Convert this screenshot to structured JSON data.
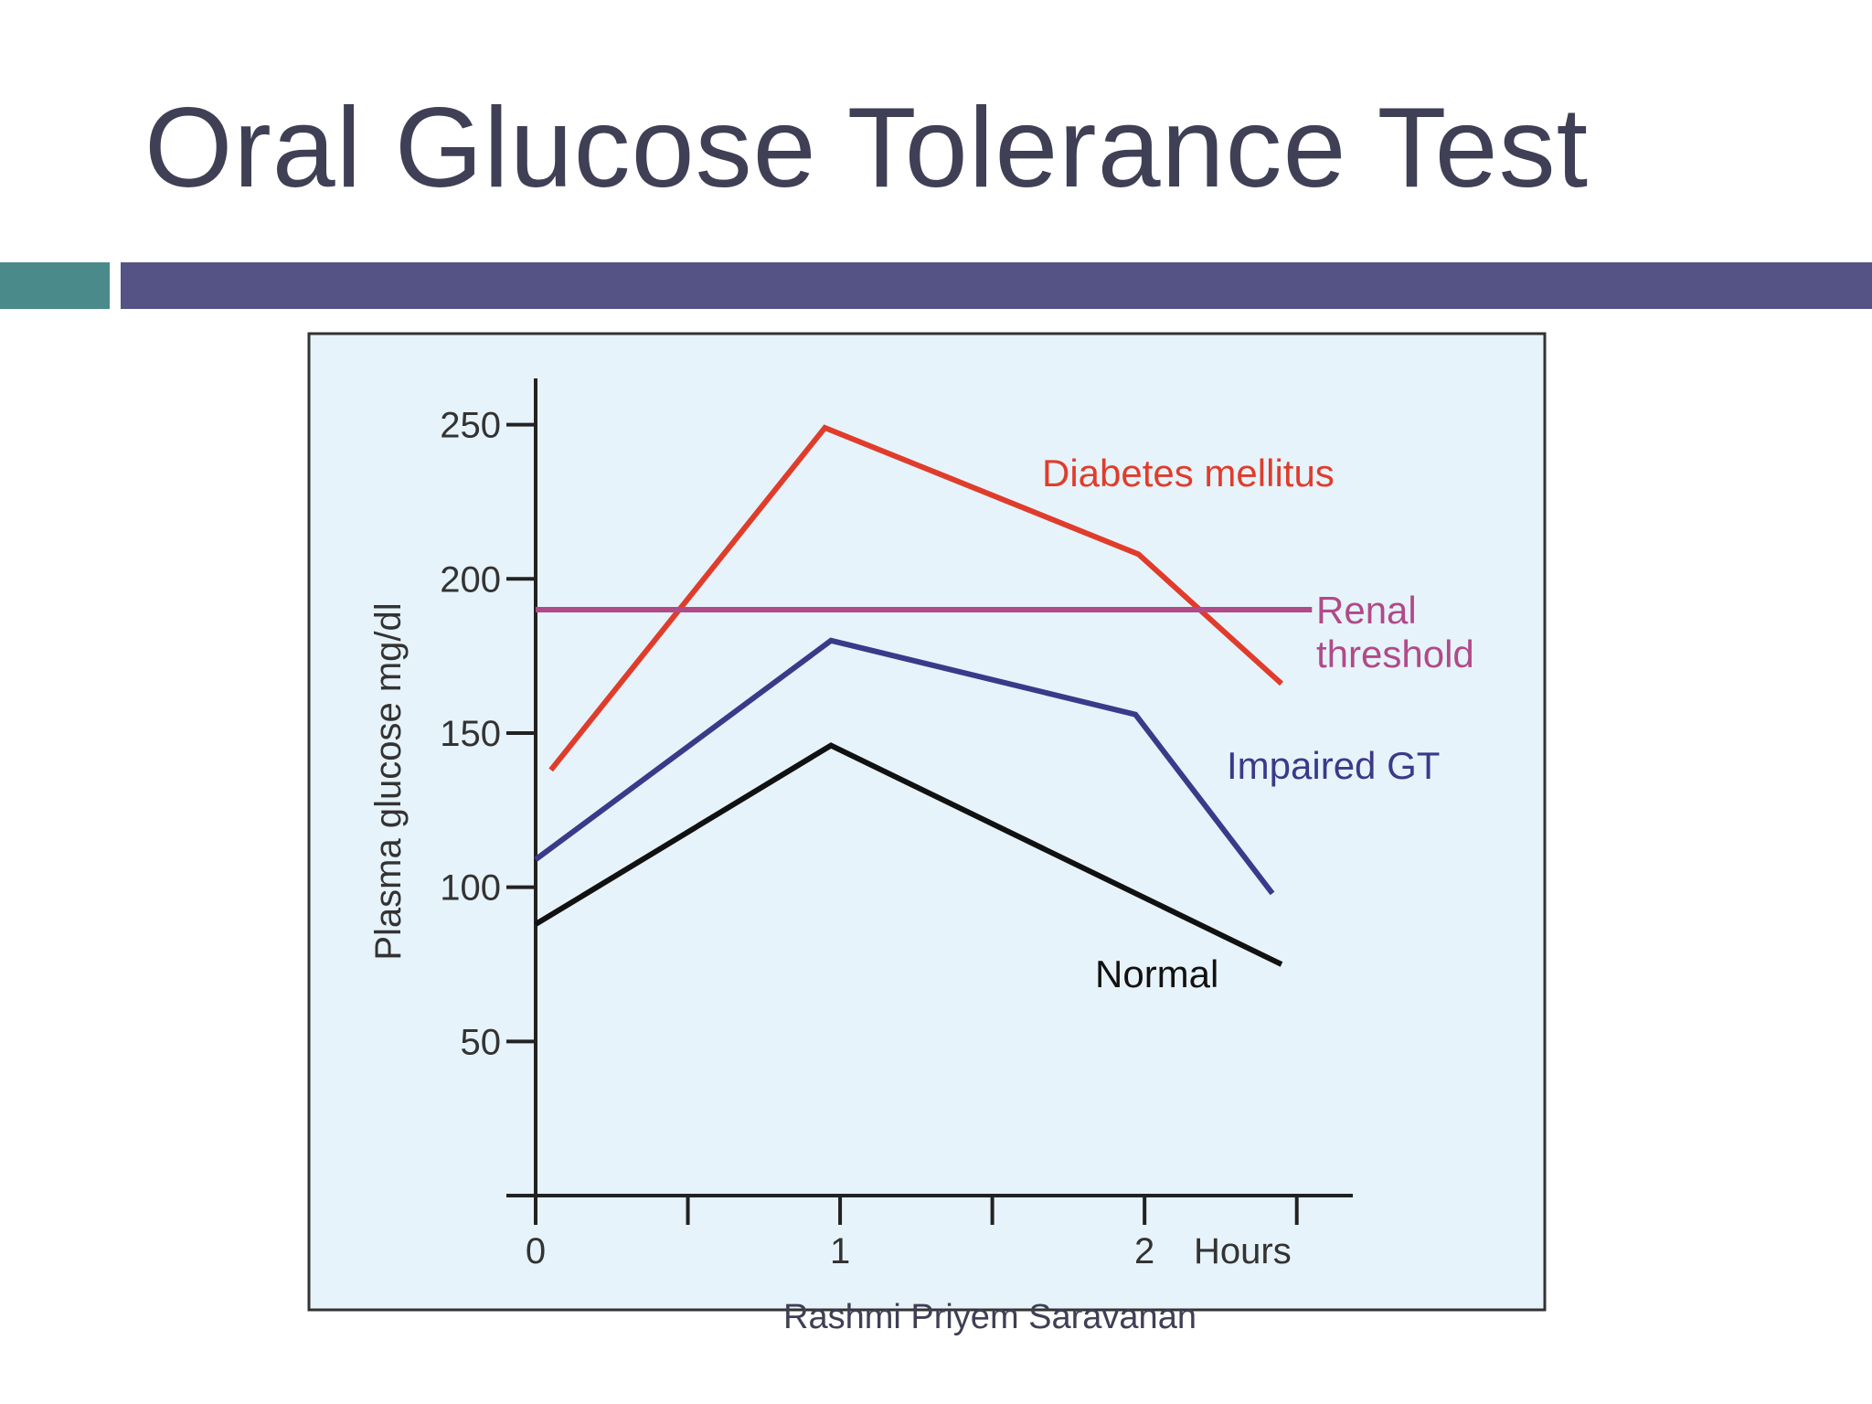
{
  "slide": {
    "title": "Oral Glucose Tolerance Test",
    "footer": "Rashmi Priyem Saravanan"
  },
  "colors": {
    "title": "#3f3f55",
    "accent_teal": "#4a8a8a",
    "accent_bar": "#555286",
    "chart_bg": "#e7f3fa"
  },
  "chart_data": {
    "type": "line",
    "title": "",
    "xlabel": "Hours",
    "ylabel": "Plasma glucose mg/dl",
    "xlim": [
      0,
      2.6
    ],
    "ylim": [
      0,
      265
    ],
    "x_ticks": [
      0,
      0.5,
      1,
      1.5,
      2,
      2.5
    ],
    "x_tick_labels": [
      {
        "x": 0,
        "label": "0"
      },
      {
        "x": 1,
        "label": "1"
      },
      {
        "x": 2,
        "label": "2"
      }
    ],
    "y_ticks": [
      50,
      100,
      150,
      200,
      250
    ],
    "y_tick_labels": [
      "50",
      "100",
      "150",
      "200",
      "250"
    ],
    "series": [
      {
        "name": "Diabetes mellitus",
        "label_lines": [
          "Diabetes mellitus"
        ],
        "color": "#e03c2c",
        "points": [
          [
            0.05,
            138
          ],
          [
            0.95,
            249
          ],
          [
            1.98,
            208
          ],
          [
            2.45,
            166
          ]
        ]
      },
      {
        "name": "Renal threshold",
        "label_lines": [
          "Renal",
          "threshold"
        ],
        "color": "#b04a88",
        "points": [
          [
            0.0,
            190
          ],
          [
            2.55,
            190
          ]
        ]
      },
      {
        "name": "Impaired GT",
        "label_lines": [
          "Impaired GT"
        ],
        "color": "#3a3a8a",
        "points": [
          [
            0.0,
            109
          ],
          [
            0.97,
            180
          ],
          [
            1.97,
            156
          ],
          [
            2.42,
            98
          ]
        ]
      },
      {
        "name": "Normal",
        "label_lines": [
          "Normal"
        ],
        "color": "#111111",
        "points": [
          [
            0.0,
            88
          ],
          [
            0.97,
            146
          ],
          [
            2.45,
            75
          ]
        ]
      }
    ]
  }
}
